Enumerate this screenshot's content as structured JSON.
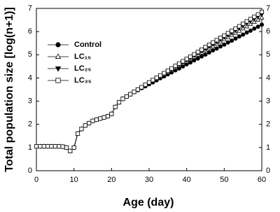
{
  "chart_data": {
    "type": "line",
    "x_label": "Age (day)",
    "y_label": "Total population size [log(n+1)]",
    "x": [
      0,
      1,
      2,
      3,
      4,
      5,
      6,
      7,
      8,
      9,
      10,
      11,
      12,
      13,
      14,
      15,
      16,
      17,
      18,
      19,
      20,
      21,
      22,
      23,
      24,
      25,
      26,
      27,
      28,
      29,
      30,
      31,
      32,
      33,
      34,
      35,
      36,
      37,
      38,
      39,
      40,
      41,
      42,
      43,
      44,
      45,
      46,
      47,
      48,
      49,
      50,
      51,
      52,
      53,
      54,
      55,
      56,
      57,
      58,
      59,
      60
    ],
    "series": [
      {
        "name": "Control",
        "color": "#000000",
        "marker": "circle",
        "filled": true,
        "values": [
          1.05,
          1.05,
          1.05,
          1.05,
          1.05,
          1.05,
          1.05,
          1.04,
          1.0,
          0.85,
          1.0,
          1.6,
          1.8,
          1.95,
          2.05,
          2.15,
          2.2,
          2.25,
          2.3,
          2.35,
          2.45,
          2.75,
          2.95,
          3.1,
          3.2,
          3.3,
          3.39,
          3.47,
          3.56,
          3.64,
          3.73,
          3.81,
          3.9,
          3.99,
          4.07,
          4.16,
          4.24,
          4.33,
          4.41,
          4.5,
          4.59,
          4.67,
          4.76,
          4.84,
          4.93,
          5.01,
          5.1,
          5.19,
          5.27,
          5.36,
          5.44,
          5.53,
          5.61,
          5.7,
          5.79,
          5.87,
          5.96,
          6.04,
          6.13,
          6.21,
          6.3
        ]
      },
      {
        "name": "LC₁₅",
        "color": "#000000",
        "marker": "triangle-up",
        "filled": false,
        "values": [
          1.05,
          1.05,
          1.05,
          1.05,
          1.05,
          1.05,
          1.05,
          1.04,
          1.0,
          0.85,
          1.0,
          1.6,
          1.8,
          1.95,
          2.05,
          2.15,
          2.2,
          2.25,
          2.3,
          2.35,
          2.45,
          2.75,
          2.95,
          3.1,
          3.2,
          3.3,
          3.39,
          3.49,
          3.58,
          3.68,
          3.77,
          3.87,
          3.96,
          4.05,
          4.15,
          4.24,
          4.34,
          4.43,
          4.53,
          4.62,
          4.71,
          4.81,
          4.9,
          5.0,
          5.09,
          5.19,
          5.28,
          5.37,
          5.47,
          5.56,
          5.66,
          5.75,
          5.85,
          5.94,
          6.03,
          6.13,
          6.22,
          6.32,
          6.41,
          6.51,
          6.6
        ]
      },
      {
        "name": "LC₂₅",
        "color": "#000000",
        "marker": "triangle-down",
        "filled": true,
        "values": [
          1.05,
          1.05,
          1.05,
          1.05,
          1.05,
          1.05,
          1.05,
          1.04,
          1.0,
          0.85,
          1.0,
          1.6,
          1.8,
          1.95,
          2.05,
          2.15,
          2.2,
          2.25,
          2.3,
          2.35,
          2.45,
          2.75,
          2.95,
          3.1,
          3.2,
          3.3,
          3.4,
          3.5,
          3.6,
          3.69,
          3.79,
          3.89,
          3.99,
          4.09,
          4.19,
          4.29,
          4.38,
          4.48,
          4.58,
          4.68,
          4.78,
          4.88,
          4.98,
          5.08,
          5.17,
          5.27,
          5.37,
          5.47,
          5.57,
          5.67,
          5.77,
          5.86,
          5.96,
          6.06,
          6.16,
          6.26,
          6.36,
          6.46,
          6.55,
          6.65,
          6.75
        ]
      },
      {
        "name": "LC₃₅",
        "color": "#000000",
        "marker": "square",
        "filled": false,
        "values": [
          1.05,
          1.05,
          1.05,
          1.05,
          1.05,
          1.05,
          1.05,
          1.04,
          1.0,
          0.85,
          1.0,
          1.6,
          1.8,
          1.95,
          2.05,
          2.15,
          2.2,
          2.25,
          2.3,
          2.35,
          2.45,
          2.75,
          2.95,
          3.1,
          3.2,
          3.3,
          3.4,
          3.5,
          3.6,
          3.71,
          3.81,
          3.91,
          4.01,
          4.11,
          4.21,
          4.31,
          4.41,
          4.52,
          4.62,
          4.72,
          4.82,
          4.92,
          5.02,
          5.12,
          5.22,
          5.33,
          5.43,
          5.53,
          5.63,
          5.73,
          5.83,
          5.93,
          6.03,
          6.13,
          6.23,
          6.34,
          6.44,
          6.54,
          6.64,
          6.74,
          6.85
        ]
      }
    ],
    "xlim": [
      0,
      60
    ],
    "xticks": [
      0,
      10,
      20,
      30,
      40,
      50,
      60
    ],
    "ylim": [
      0,
      7
    ],
    "yticks": [
      0,
      1,
      2,
      3,
      4,
      5,
      6,
      7
    ],
    "legend": "upper-left",
    "grid": false
  }
}
